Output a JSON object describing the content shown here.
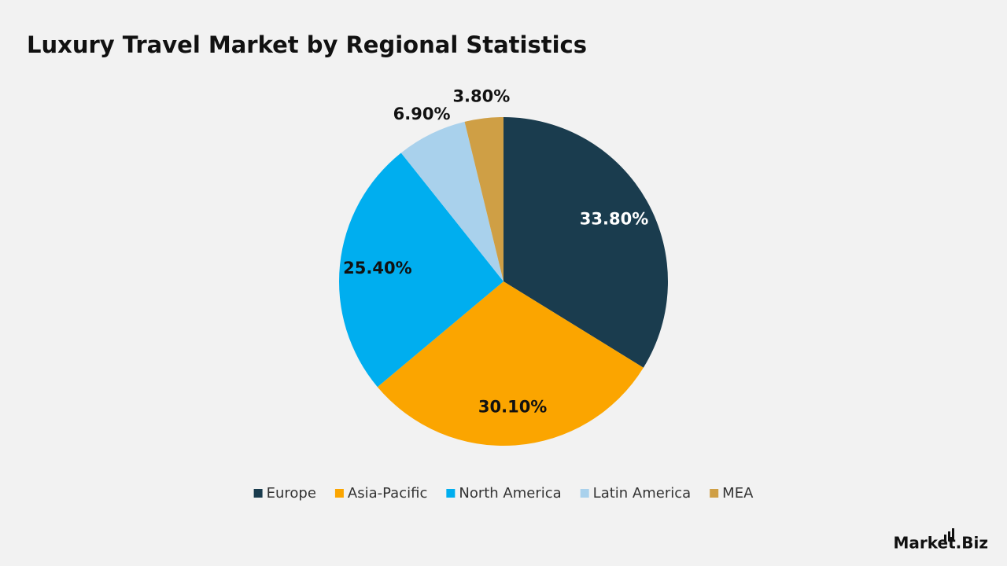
{
  "chart_data": {
    "type": "pie",
    "title": "Luxury Travel Market by Regional Statistics",
    "categories": [
      "Europe",
      "Asia-Pacific",
      "North America",
      "Latin America",
      "MEA"
    ],
    "values": [
      33.8,
      30.1,
      25.4,
      6.9,
      3.8
    ],
    "value_labels": [
      "33.80%",
      "30.10%",
      "25.40%",
      "6.90%",
      "3.80%"
    ],
    "colors": [
      "#1a3c4e",
      "#fba500",
      "#00aeef",
      "#a9d1ec",
      "#cf9f45"
    ],
    "legend": "bottom"
  },
  "logo": "Market.Biz"
}
